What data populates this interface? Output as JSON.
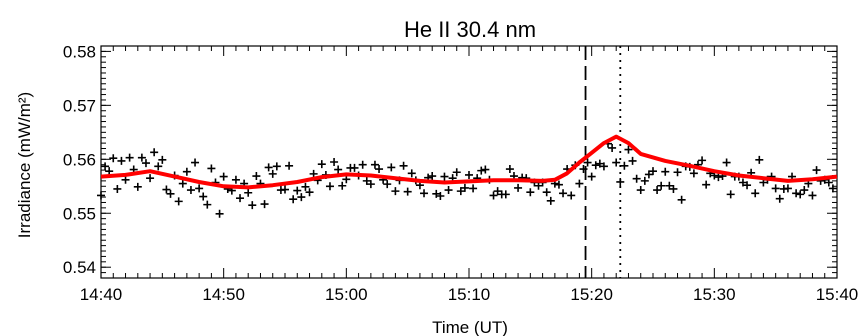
{
  "chart_data": {
    "type": "scatter",
    "title": "He II 30.4 nm",
    "xlabel": "Time (UT)",
    "ylabel": "Irradiance (mW/m²)",
    "xlim": [
      "14:40",
      "15:40"
    ],
    "ylim": [
      0.538,
      0.581
    ],
    "x_tick_labels": [
      "14:40",
      "14:50",
      "15:00",
      "15:10",
      "15:20",
      "15:30",
      "15:40"
    ],
    "y_tick_labels": [
      "0.54",
      "0.55",
      "0.56",
      "0.57",
      "0.58"
    ],
    "grid": false,
    "colors": {
      "points": "#000000",
      "smooth": "#ff0000"
    },
    "vertical_markers": [
      {
        "time": "15:19:30",
        "style": "dashed"
      },
      {
        "time": "15:22:20",
        "style": "dotted"
      }
    ],
    "series": [
      {
        "marker": "plus",
        "x": [
          "14:40:00",
          "14:40:20",
          "14:40:40",
          "14:41:00",
          "14:41:20",
          "14:41:40",
          "14:42:00",
          "14:42:20",
          "14:42:40",
          "14:43:00",
          "14:43:20",
          "14:43:40",
          "14:44:00",
          "14:44:20",
          "14:44:40",
          "14:45:00",
          "14:45:20",
          "14:45:40",
          "14:46:00",
          "14:46:20",
          "14:46:40",
          "14:47:00",
          "14:47:20",
          "14:47:40",
          "14:48:00",
          "14:48:20",
          "14:48:40",
          "14:49:00",
          "14:49:20",
          "14:49:40",
          "14:50:00",
          "14:50:20",
          "14:50:40",
          "14:51:00",
          "14:51:20",
          "14:51:40",
          "14:52:00",
          "14:52:20",
          "14:52:40",
          "14:53:00",
          "14:53:20",
          "14:53:40",
          "14:54:00",
          "14:54:20",
          "14:54:40",
          "14:55:00",
          "14:55:20",
          "14:55:40",
          "14:56:00",
          "14:56:20",
          "14:56:40",
          "14:57:00",
          "14:57:20",
          "14:57:40",
          "14:58:00",
          "14:58:20",
          "14:58:40",
          "14:59:00",
          "14:59:20",
          "14:59:40",
          "15:00:00",
          "15:00:20",
          "15:00:40",
          "15:01:00",
          "15:01:20",
          "15:01:40",
          "15:02:00",
          "15:02:20",
          "15:02:40",
          "15:03:00",
          "15:03:20",
          "15:03:40",
          "15:04:00",
          "15:04:20",
          "15:04:40",
          "15:05:00",
          "15:05:20",
          "15:05:40",
          "15:06:00",
          "15:06:20",
          "15:06:40",
          "15:07:00",
          "15:07:20",
          "15:07:40",
          "15:08:00",
          "15:08:20",
          "15:08:40",
          "15:09:00",
          "15:09:20",
          "15:09:40",
          "15:10:00",
          "15:10:20",
          "15:10:40",
          "15:11:00",
          "15:11:20",
          "15:11:40",
          "15:12:00",
          "15:12:20",
          "15:12:40",
          "15:13:00",
          "15:13:20",
          "15:13:40",
          "15:14:00",
          "15:14:20",
          "15:14:40",
          "15:15:00",
          "15:15:20",
          "15:15:40",
          "15:16:00",
          "15:16:20",
          "15:16:40",
          "15:17:00",
          "15:17:20",
          "15:17:40",
          "15:18:00",
          "15:18:20",
          "15:18:40",
          "15:19:00",
          "15:19:20",
          "15:19:40",
          "15:20:00",
          "15:20:20",
          "15:20:40",
          "15:21:00",
          "15:21:20",
          "15:21:40",
          "15:22:00",
          "15:22:20",
          "15:22:40",
          "15:23:00",
          "15:23:20",
          "15:23:40",
          "15:24:00",
          "15:24:20",
          "15:24:40",
          "15:25:00",
          "15:25:20",
          "15:25:40",
          "15:26:00",
          "15:26:20",
          "15:26:40",
          "15:27:00",
          "15:27:20",
          "15:27:40",
          "15:28:00",
          "15:28:20",
          "15:28:40",
          "15:29:00",
          "15:29:20",
          "15:29:40",
          "15:30:00",
          "15:30:20",
          "15:30:40",
          "15:31:00",
          "15:31:20",
          "15:31:40",
          "15:32:00",
          "15:32:20",
          "15:32:40",
          "15:33:00",
          "15:33:20",
          "15:33:40",
          "15:34:00",
          "15:34:20",
          "15:34:40",
          "15:35:00",
          "15:35:20",
          "15:35:40",
          "15:36:00",
          "15:36:20",
          "15:36:40",
          "15:37:00",
          "15:37:20",
          "15:37:40",
          "15:38:00",
          "15:38:20",
          "15:38:40",
          "15:39:00",
          "15:39:20",
          "15:39:40"
        ],
        "y": [
          0.5533,
          0.5587,
          0.5578,
          0.5602,
          0.5545,
          0.5597,
          0.5562,
          0.5603,
          0.5581,
          0.5549,
          0.5603,
          0.5593,
          0.5565,
          0.5613,
          0.5587,
          0.5599,
          0.5544,
          0.5536,
          0.557,
          0.5522,
          0.5555,
          0.5577,
          0.5543,
          0.5594,
          0.5546,
          0.5531,
          0.5516,
          0.5583,
          0.5557,
          0.5499,
          0.5568,
          0.5545,
          0.5542,
          0.5562,
          0.5528,
          0.5555,
          0.5538,
          0.5515,
          0.5569,
          0.5555,
          0.5517,
          0.5585,
          0.5573,
          0.5587,
          0.5543,
          0.5544,
          0.5588,
          0.5526,
          0.5542,
          0.553,
          0.5549,
          0.5539,
          0.5573,
          0.5561,
          0.5591,
          0.5571,
          0.555,
          0.5595,
          0.5581,
          0.5551,
          0.5563,
          0.5584,
          0.5584,
          0.557,
          0.559,
          0.556,
          0.5554,
          0.559,
          0.5582,
          0.5562,
          0.5554,
          0.5585,
          0.5541,
          0.5561,
          0.5588,
          0.554,
          0.5574,
          0.5561,
          0.5552,
          0.5537,
          0.5566,
          0.5569,
          0.5536,
          0.5532,
          0.5568,
          0.5543,
          0.5565,
          0.5576,
          0.5541,
          0.5547,
          0.5571,
          0.5546,
          0.5565,
          0.5579,
          0.5581,
          0.5562,
          0.5533,
          0.5541,
          0.5535,
          0.5535,
          0.5582,
          0.5569,
          0.5547,
          0.5566,
          0.5565,
          0.5539,
          0.5557,
          0.5551,
          0.5557,
          0.5539,
          0.5523,
          0.5555,
          0.5553,
          0.5537,
          0.5582,
          0.5533,
          0.5589,
          0.5555,
          0.5582,
          0.5594,
          0.5568,
          0.5589,
          0.5592,
          0.5587,
          0.5629,
          0.5621,
          0.5594,
          0.5558,
          0.5588,
          0.5618,
          0.5597,
          0.5564,
          0.5543,
          0.556,
          0.5572,
          0.5578,
          0.5543,
          0.5551,
          0.5577,
          0.5551,
          0.5545,
          0.5576,
          0.5525,
          0.5587,
          0.5586,
          0.5574,
          0.559,
          0.5598,
          0.5553,
          0.5574,
          0.557,
          0.5567,
          0.5569,
          0.5594,
          0.5535,
          0.5568,
          0.5568,
          0.5557,
          0.5552,
          0.5575,
          0.5537,
          0.5599,
          0.5557,
          0.5562,
          0.5568,
          0.5546,
          0.5527,
          0.5545,
          0.5546,
          0.5568,
          0.5537,
          0.5535,
          0.5543,
          0.5555,
          0.5533,
          0.558,
          0.556,
          0.5562,
          0.5557,
          0.5546
        ]
      },
      {
        "marker": "line",
        "x": [
          "14:40",
          "14:42",
          "14:44",
          "14:46",
          "14:48",
          "14:50",
          "14:52",
          "14:54",
          "14:56",
          "14:58",
          "15:00",
          "15:02",
          "15:04",
          "15:06",
          "15:08",
          "15:10",
          "15:12",
          "15:14",
          "15:16",
          "15:17",
          "15:18",
          "15:19",
          "15:20",
          "15:21",
          "15:22",
          "15:23",
          "15:24",
          "15:26",
          "15:28",
          "15:30",
          "15:32",
          "15:34",
          "15:36",
          "15:38",
          "15:40"
        ],
        "y": [
          0.5568,
          0.5571,
          0.5578,
          0.5568,
          0.5558,
          0.555,
          0.5548,
          0.5552,
          0.5558,
          0.5567,
          0.5572,
          0.557,
          0.5565,
          0.556,
          0.5557,
          0.5559,
          0.5561,
          0.5561,
          0.556,
          0.5562,
          0.5574,
          0.5594,
          0.5612,
          0.563,
          0.5642,
          0.563,
          0.561,
          0.5597,
          0.5588,
          0.5578,
          0.557,
          0.5565,
          0.556,
          0.5563,
          0.5568
        ]
      }
    ]
  }
}
